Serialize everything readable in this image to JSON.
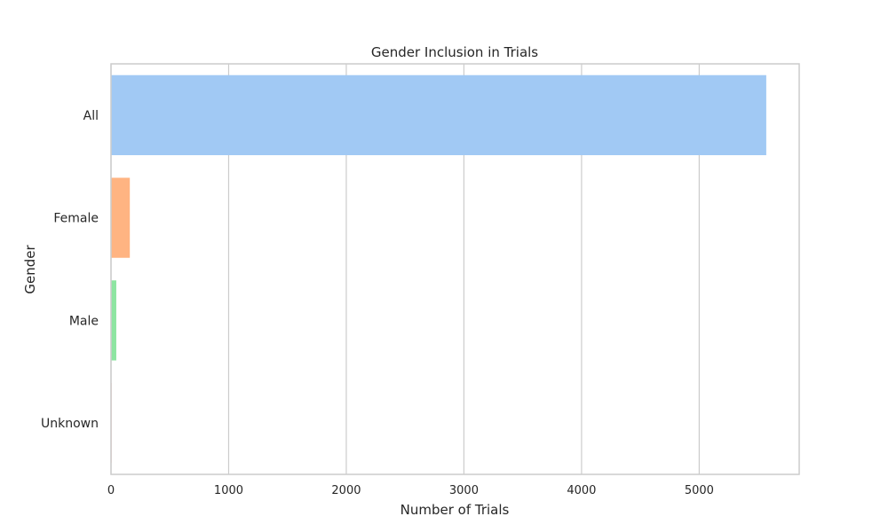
{
  "chart_data": {
    "type": "bar",
    "orientation": "horizontal",
    "title": "Gender Inclusion in Trials",
    "xlabel": "Number of Trials",
    "ylabel": "Gender",
    "categories": [
      "All",
      "Female",
      "Male",
      "Unknown"
    ],
    "values": [
      5570,
      160,
      45,
      5
    ],
    "xlim": [
      0,
      5850
    ],
    "x_ticks": [
      0,
      1000,
      2000,
      3000,
      4000,
      5000
    ],
    "grid": "vertical",
    "legend": "none",
    "colors": [
      "#a1c9f4",
      "#ffb482",
      "#8de5a1",
      "#ff9f9b"
    ],
    "gridline_color": "#cccccc",
    "frame_color": "#cccccc"
  }
}
